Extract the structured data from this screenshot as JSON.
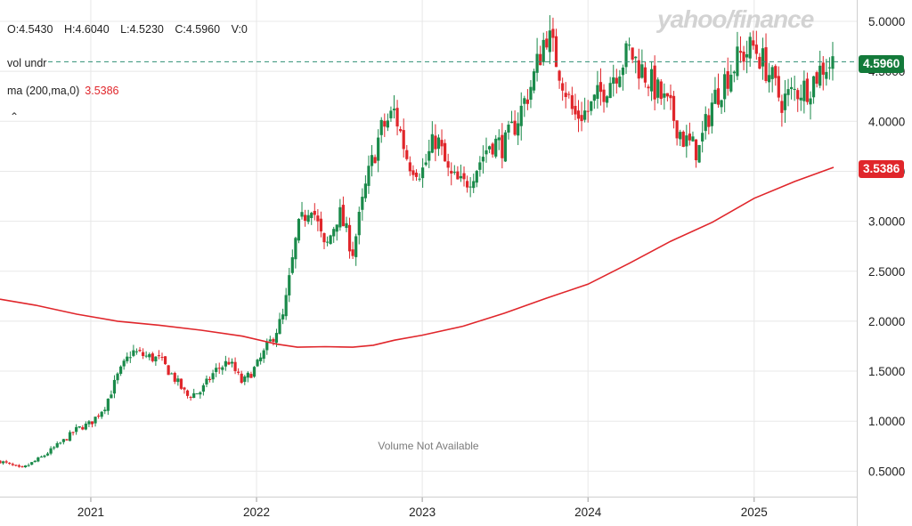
{
  "watermark": "yahoo/finance",
  "legend": {
    "ohlc": [
      {
        "label": "O",
        "value": "4.5430"
      },
      {
        "label": "H",
        "value": "4.6040"
      },
      {
        "label": "L",
        "value": "4.5230"
      },
      {
        "label": "C",
        "value": "4.5960"
      },
      {
        "label": "V",
        "value": "0"
      }
    ],
    "volume_label": "vol undr",
    "ma_label": "ma (200,ma,0)",
    "ma_value": "3.5386",
    "collapse_icon": "chevron-up-icon"
  },
  "volume_notice": "Volume Not Available",
  "last_price_label": "4.5960",
  "ma_price_label": "3.5386",
  "colors": {
    "up": "#1a8a4a",
    "down": "#e0262b",
    "ma": "#e0262b",
    "last_line": "#2f8f74",
    "grid": "#e8e8e8"
  },
  "chart_data": {
    "type": "candlestick",
    "y_ticks": [
      "5.0000",
      "4.5000",
      "4.0000",
      "3.5000",
      "3.0000",
      "2.5000",
      "2.0000",
      "1.5000",
      "1.0000",
      "0.5000"
    ],
    "x_ticks": [
      "2021",
      "2022",
      "2023",
      "2024",
      "2025"
    ],
    "ylim": [
      0.35,
      5.15
    ],
    "xlim": [
      "2020-06-15",
      "2025-08-15"
    ],
    "last_price": 4.596,
    "series": [
      {
        "name": "ma (200,ma,0)",
        "type": "line",
        "points": [
          [
            "2020-06-15",
            2.22
          ],
          [
            "2020-09-01",
            2.16
          ],
          [
            "2020-12-01",
            2.07
          ],
          [
            "2021-03-01",
            2.0
          ],
          [
            "2021-06-01",
            1.96
          ],
          [
            "2021-09-01",
            1.91
          ],
          [
            "2021-12-01",
            1.85
          ],
          [
            "2022-02-15",
            1.77
          ],
          [
            "2022-04-01",
            1.74
          ],
          [
            "2022-06-01",
            1.745
          ],
          [
            "2022-08-01",
            1.74
          ],
          [
            "2022-09-15",
            1.76
          ],
          [
            "2022-11-01",
            1.81
          ],
          [
            "2023-01-01",
            1.86
          ],
          [
            "2023-04-01",
            1.95
          ],
          [
            "2023-07-01",
            2.08
          ],
          [
            "2023-10-01",
            2.23
          ],
          [
            "2024-01-01",
            2.37
          ],
          [
            "2024-04-01",
            2.58
          ],
          [
            "2024-07-01",
            2.8
          ],
          [
            "2024-10-01",
            2.99
          ],
          [
            "2025-01-01",
            3.23
          ],
          [
            "2025-04-01",
            3.4
          ],
          [
            "2025-06-25",
            3.54
          ]
        ]
      },
      {
        "name": "price",
        "type": "candlestick",
        "points": [
          [
            "2020-06-15",
            0.6
          ],
          [
            "2020-08-01",
            0.52
          ],
          [
            "2020-09-15",
            0.64
          ],
          [
            "2020-11-01",
            0.8
          ],
          [
            "2020-12-01",
            0.92
          ],
          [
            "2021-01-01",
            0.98
          ],
          [
            "2021-02-01",
            1.15
          ],
          [
            "2021-03-01",
            1.45
          ],
          [
            "2021-04-01",
            1.7
          ],
          [
            "2021-05-01",
            1.65
          ],
          [
            "2021-06-01",
            1.62
          ],
          [
            "2021-07-01",
            1.45
          ],
          [
            "2021-08-01",
            1.25
          ],
          [
            "2021-09-01",
            1.3
          ],
          [
            "2021-10-01",
            1.5
          ],
          [
            "2021-11-01",
            1.6
          ],
          [
            "2021-12-01",
            1.38
          ],
          [
            "2022-01-01",
            1.55
          ],
          [
            "2022-02-01",
            1.8
          ],
          [
            "2022-03-01",
            2.05
          ],
          [
            "2022-04-01",
            2.9
          ],
          [
            "2022-05-01",
            3.2
          ],
          [
            "2022-06-01",
            2.7
          ],
          [
            "2022-07-01",
            3.1
          ],
          [
            "2022-08-01",
            2.7
          ],
          [
            "2022-09-01",
            3.4
          ],
          [
            "2022-10-01",
            3.9
          ],
          [
            "2022-11-01",
            4.1
          ],
          [
            "2022-12-01",
            3.6
          ],
          [
            "2023-01-01",
            3.5
          ],
          [
            "2023-02-01",
            3.85
          ],
          [
            "2023-03-01",
            3.45
          ],
          [
            "2023-04-01",
            3.35
          ],
          [
            "2023-05-01",
            3.55
          ],
          [
            "2023-06-01",
            3.8
          ],
          [
            "2023-07-01",
            3.75
          ],
          [
            "2023-08-01",
            4.05
          ],
          [
            "2023-09-01",
            4.4
          ],
          [
            "2023-10-01",
            4.9
          ],
          [
            "2023-11-01",
            4.5
          ],
          [
            "2023-12-01",
            4.05
          ],
          [
            "2024-01-01",
            4.1
          ],
          [
            "2024-02-01",
            4.3
          ],
          [
            "2024-03-01",
            4.5
          ],
          [
            "2024-04-01",
            4.7
          ],
          [
            "2024-05-01",
            4.5
          ],
          [
            "2024-06-01",
            4.3
          ],
          [
            "2024-07-01",
            4.1
          ],
          [
            "2024-08-01",
            3.8
          ],
          [
            "2024-09-01",
            3.7
          ],
          [
            "2024-10-01",
            4.2
          ],
          [
            "2024-11-01",
            4.45
          ],
          [
            "2024-12-01",
            4.65
          ],
          [
            "2025-01-01",
            4.75
          ],
          [
            "2025-02-01",
            4.5
          ],
          [
            "2025-03-01",
            4.2
          ],
          [
            "2025-04-01",
            4.3
          ],
          [
            "2025-05-01",
            4.35
          ],
          [
            "2025-06-01",
            4.55
          ],
          [
            "2025-06-25",
            4.6
          ]
        ]
      }
    ]
  }
}
